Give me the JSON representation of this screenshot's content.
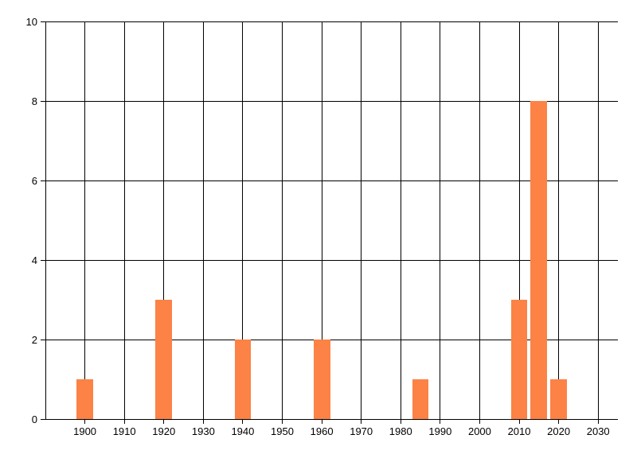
{
  "chart": {
    "background_color": "#ffffff",
    "grid_color": "#000000",
    "axis_color": "#000000",
    "text_color": "#000000",
    "bar_color": "#fc8246"
  },
  "chart_data": {
    "type": "bar",
    "title": "",
    "xlabel": "",
    "ylabel": "",
    "x": [
      1900,
      1920,
      1940,
      1960,
      1985,
      2010,
      2015,
      2020
    ],
    "values": [
      1,
      3,
      2,
      2,
      1,
      3,
      8,
      1
    ],
    "bar_width_years": 4.2,
    "xlim": [
      1890,
      2035
    ],
    "ylim": [
      0,
      10
    ],
    "x_ticks": [
      1900,
      1910,
      1920,
      1930,
      1940,
      1950,
      1960,
      1970,
      1980,
      1990,
      2000,
      2010,
      2020,
      2030
    ],
    "x_tick_labels": [
      "1900",
      "1910",
      "1920",
      "1930",
      "1940",
      "1950",
      "1960",
      "1970",
      "1980",
      "1990",
      "2000",
      "2010",
      "2020",
      "2030"
    ],
    "y_ticks": [
      0,
      2,
      4,
      6,
      8,
      10
    ],
    "y_tick_labels": [
      "0",
      "2",
      "4",
      "6",
      "8",
      "10"
    ],
    "grid": true,
    "legend": false
  }
}
